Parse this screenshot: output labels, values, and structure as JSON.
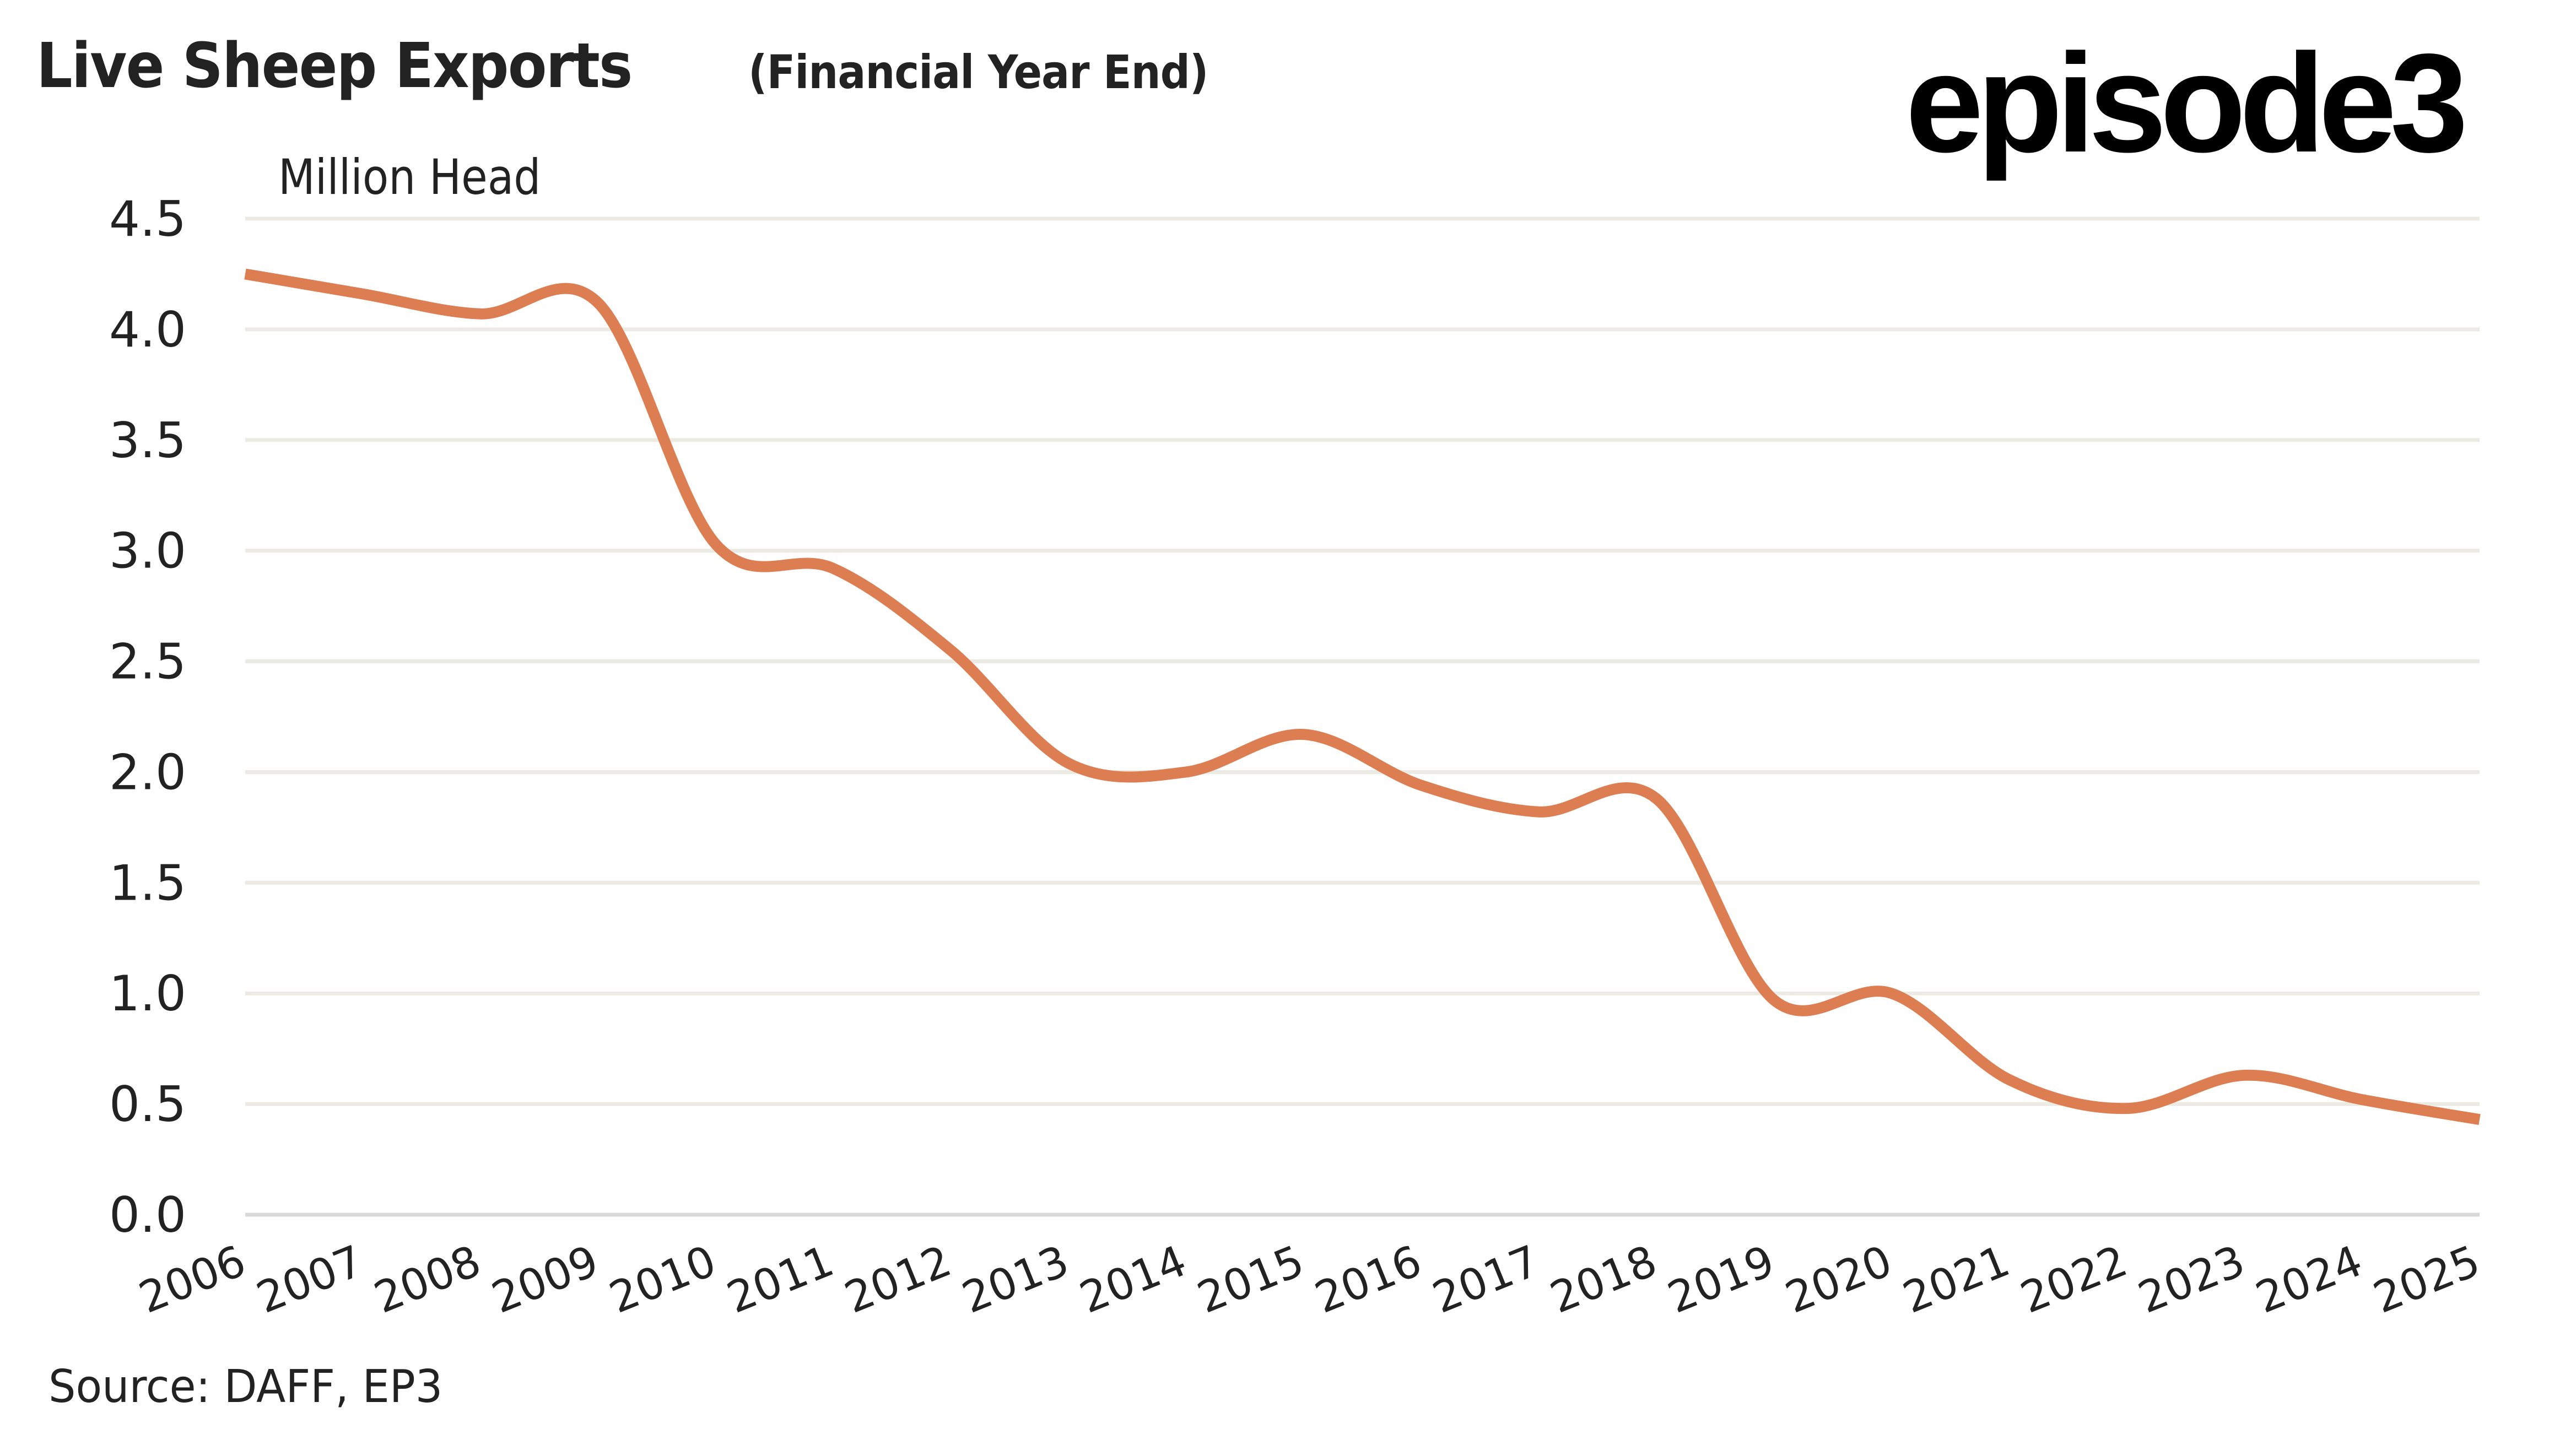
{
  "header": {
    "title": "Live Sheep Exports",
    "subtitle": "(Financial Year End)",
    "logo": "episode3"
  },
  "footer": {
    "source": "Source:  DAFF, EP3"
  },
  "colors": {
    "line": "#DC7E52",
    "gridline": "#ECEBE3",
    "baseline": "#D9D9D9",
    "text": "#222222"
  },
  "chart_data": {
    "type": "line",
    "title": "Live Sheep Exports (Financial Year End)",
    "xlabel": "",
    "ylabel": "Million Head",
    "categories": [
      "2006",
      "2007",
      "2008",
      "2009",
      "2010",
      "2011",
      "2012",
      "2013",
      "2014",
      "2015",
      "2016",
      "2017",
      "2018",
      "2019",
      "2020",
      "2021",
      "2022",
      "2023",
      "2024",
      "2025"
    ],
    "series": [
      {
        "name": "Live Sheep Exports",
        "values": [
          4.25,
          4.16,
          4.07,
          4.12,
          3.03,
          2.92,
          2.55,
          2.04,
          2.0,
          2.17,
          1.94,
          1.82,
          1.88,
          0.97,
          1.0,
          0.61,
          0.48,
          0.63,
          0.52,
          0.43
        ],
        "smooth": true
      }
    ],
    "ylim": [
      0,
      4.5
    ],
    "yticks": [
      "0.0",
      "0.5",
      "1.0",
      "1.5",
      "2.0",
      "2.5",
      "3.0",
      "3.5",
      "4.0",
      "4.5"
    ],
    "ytick_values": [
      0,
      0.5,
      1.0,
      1.5,
      2.0,
      2.5,
      3.0,
      3.5,
      4.0,
      4.5
    ],
    "grid": true,
    "legend": "none",
    "source": "DAFF, EP3"
  }
}
